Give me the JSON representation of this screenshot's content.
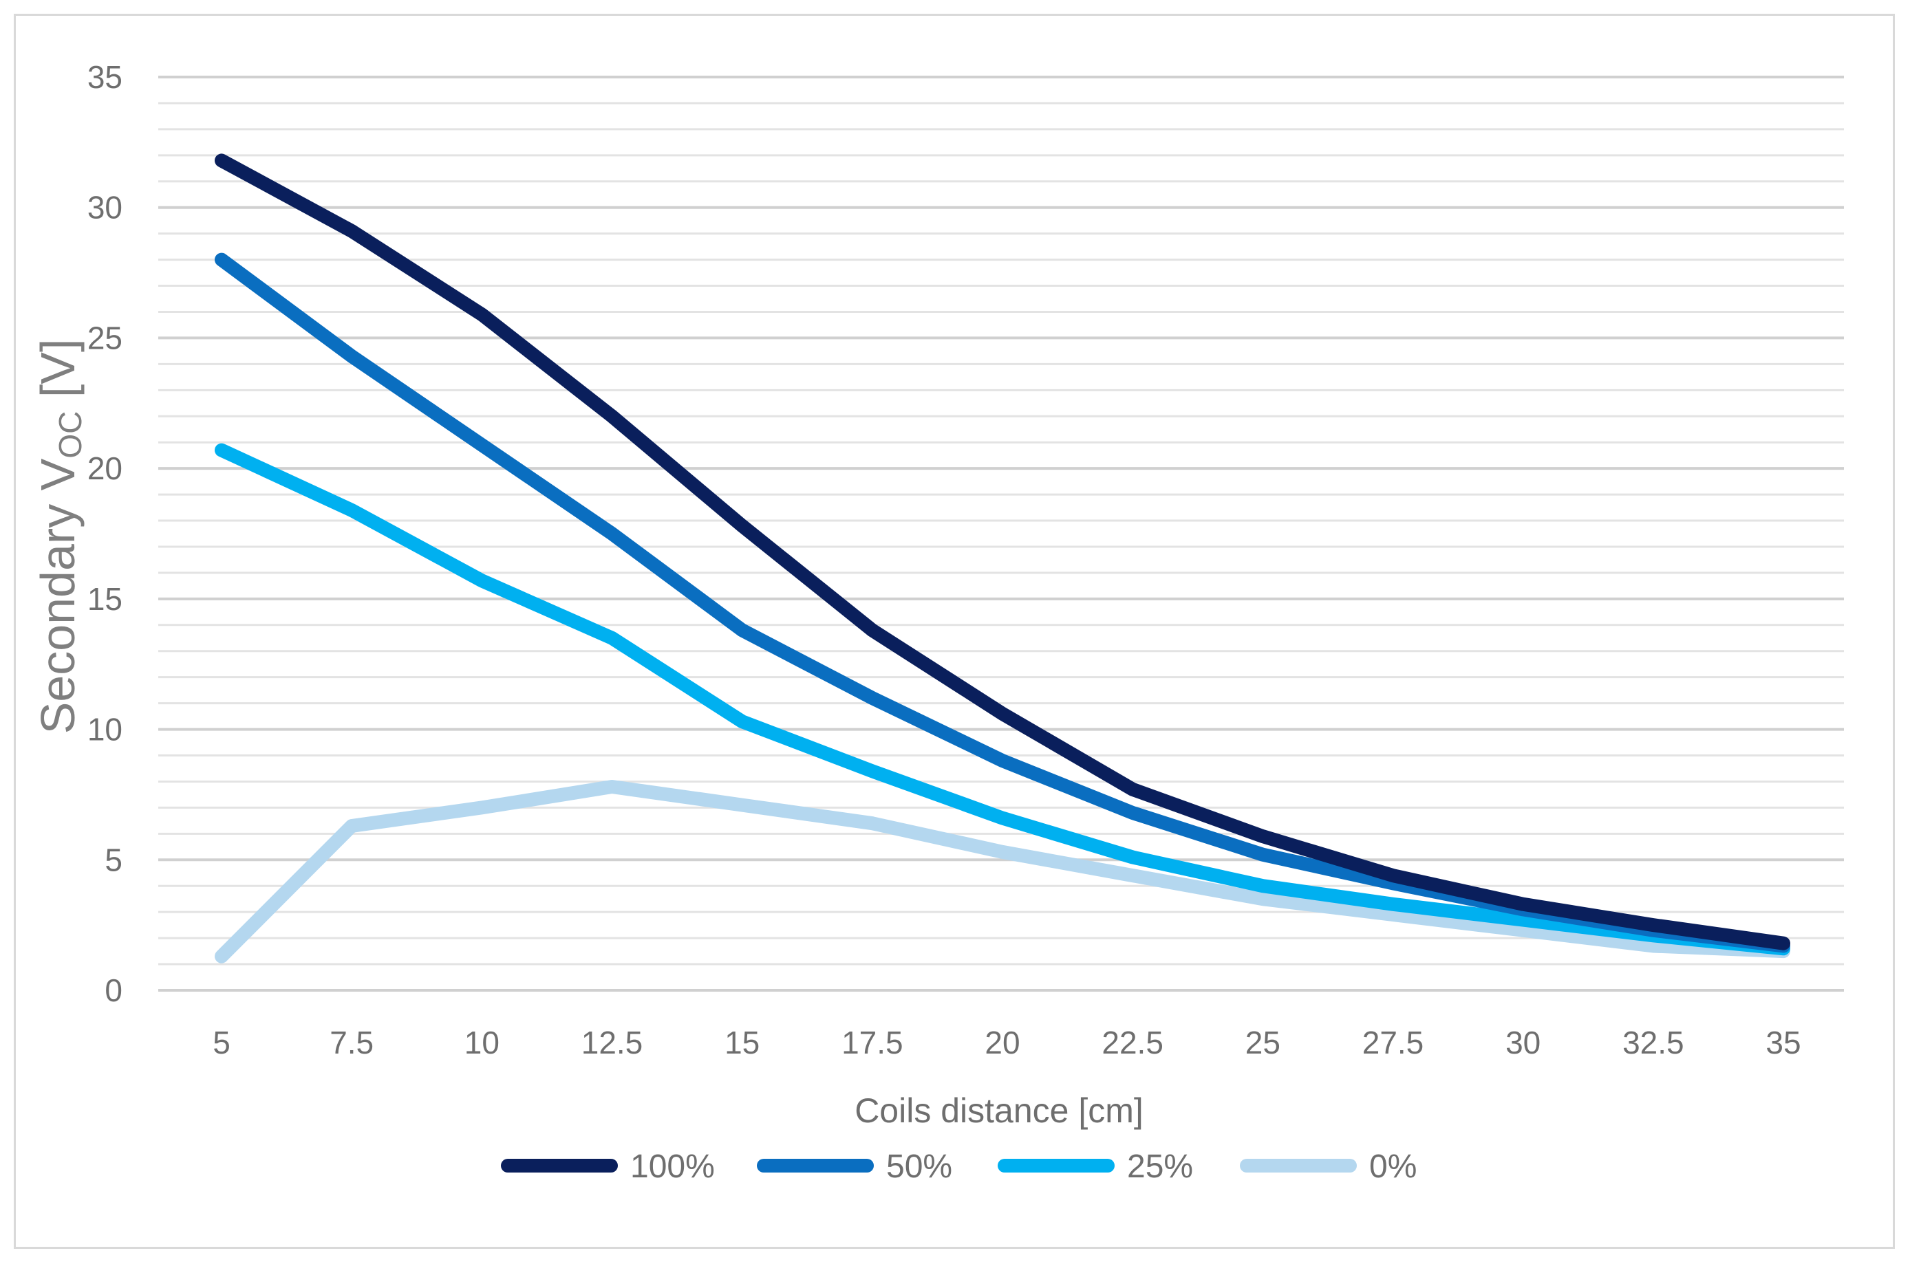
{
  "chart_data": {
    "type": "line",
    "title": "",
    "xlabel": "Coils distance [cm]",
    "ylabel": {
      "prefix": "Secondary V",
      "subscript": "OC",
      "suffix": " [V]"
    },
    "categories": [
      "5",
      "7.5",
      "10",
      "12.5",
      "15",
      "17.5",
      "20",
      "22.5",
      "25",
      "27.5",
      "30",
      "32.5",
      "35"
    ],
    "ylim": [
      0,
      35
    ],
    "yticks": [
      "0",
      "5",
      "10",
      "15",
      "20",
      "25",
      "30",
      "35"
    ],
    "minor_grid_step": 1,
    "legend_position": "bottom",
    "series": [
      {
        "name": "100%",
        "color": "#0a1f5c",
        "values": [
          31.8,
          29.1,
          25.9,
          22.0,
          17.8,
          13.8,
          10.6,
          7.7,
          5.9,
          4.4,
          3.3,
          2.5,
          1.8
        ]
      },
      {
        "name": "50%",
        "color": "#0a6ec0",
        "values": [
          28.0,
          24.3,
          20.9,
          17.5,
          13.8,
          11.2,
          8.8,
          6.8,
          5.2,
          4.1,
          3.1,
          2.3,
          1.7
        ]
      },
      {
        "name": "25%",
        "color": "#00b0f0",
        "values": [
          20.7,
          18.4,
          15.7,
          13.5,
          10.3,
          8.4,
          6.6,
          5.1,
          4.0,
          3.3,
          2.7,
          2.1,
          1.6
        ]
      },
      {
        "name": "0%",
        "color": "#b4d7ef",
        "values": [
          1.3,
          6.3,
          7.0,
          7.8,
          7.1,
          6.4,
          5.3,
          4.4,
          3.5,
          2.9,
          2.3,
          1.7,
          1.5
        ]
      }
    ]
  }
}
